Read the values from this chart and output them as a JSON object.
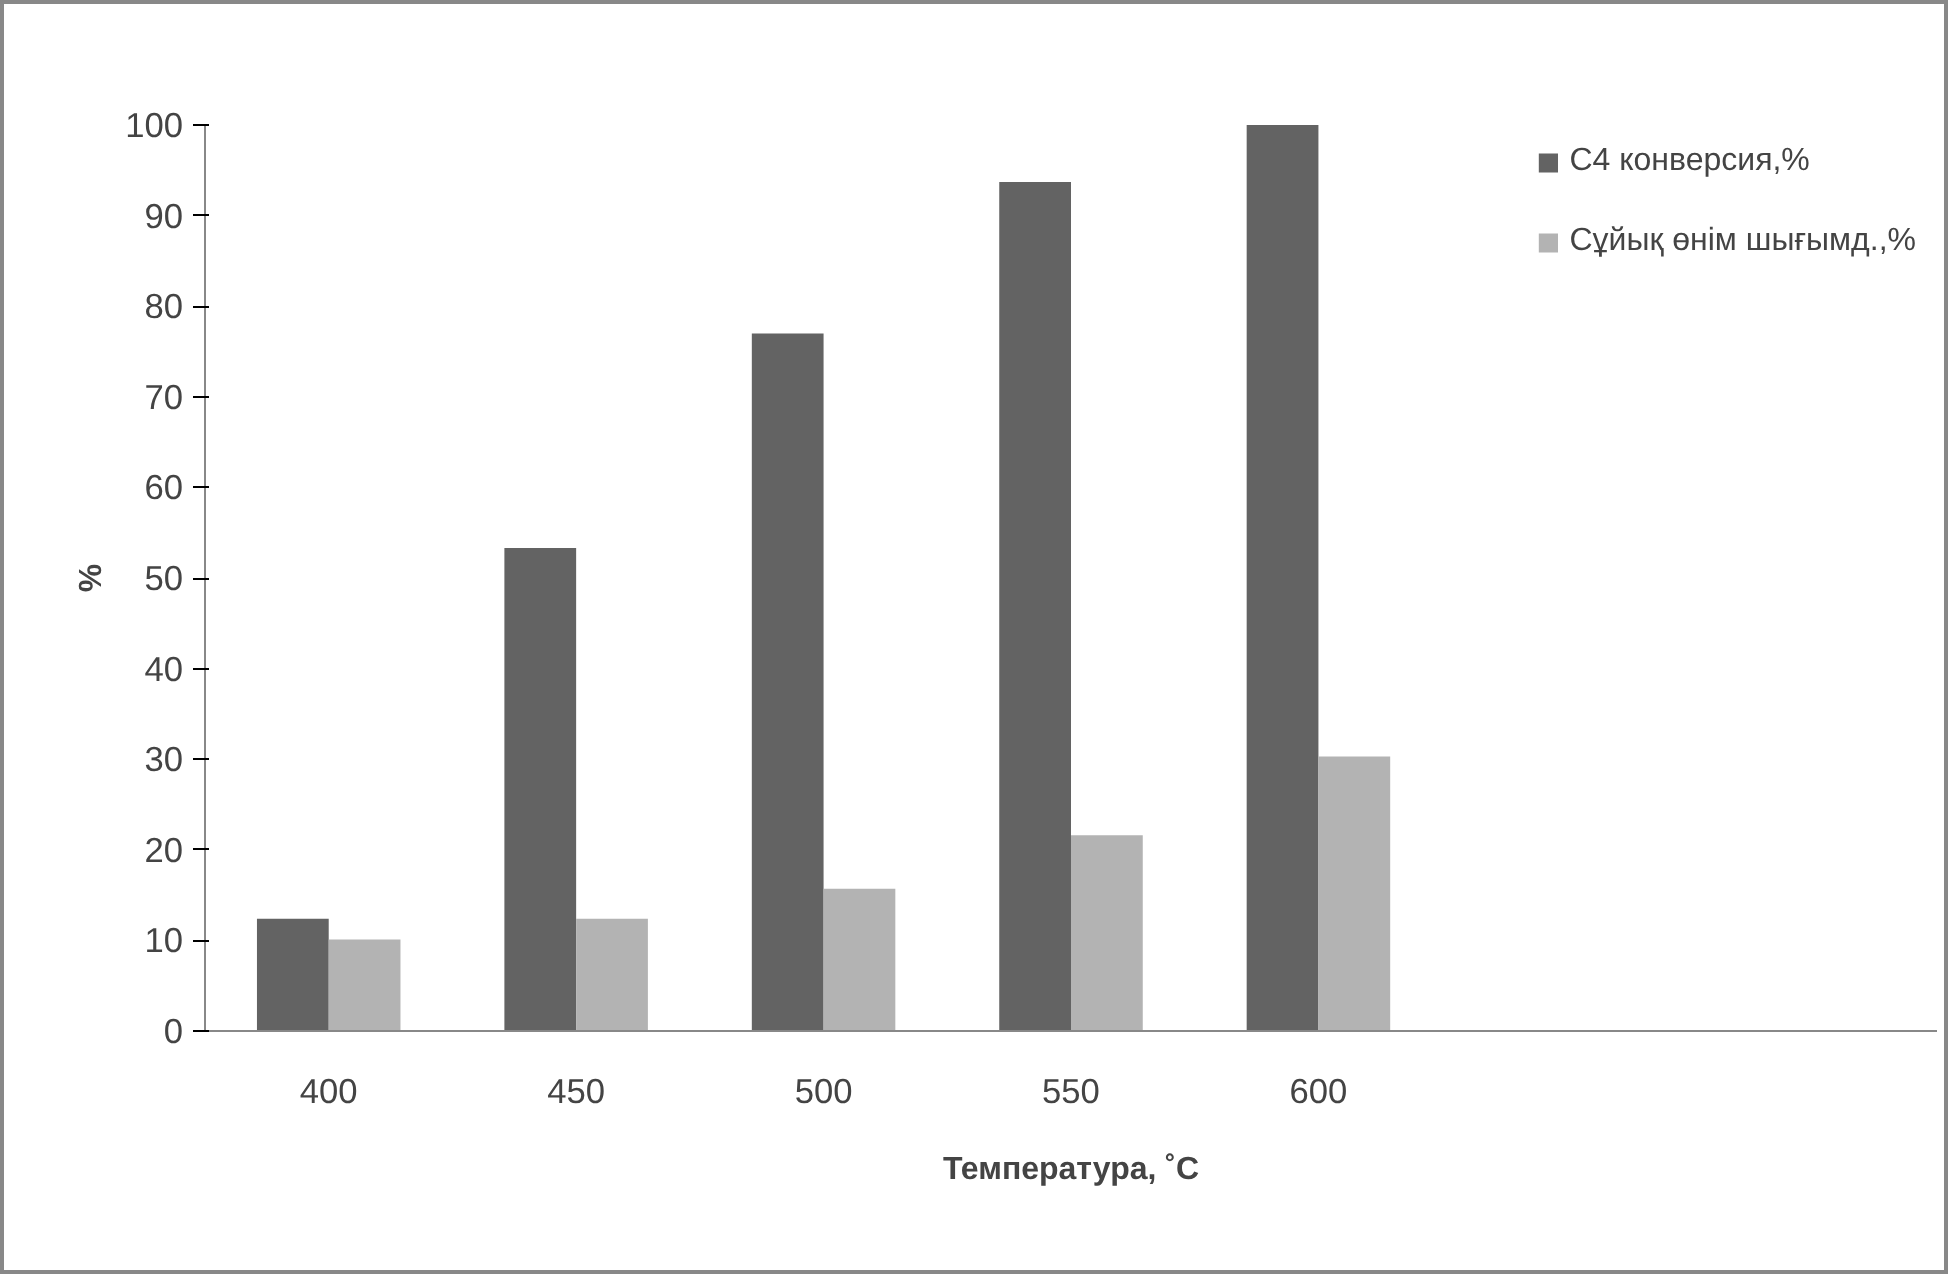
{
  "chart_data": {
    "type": "bar",
    "xlabel": "Температура, ˚С",
    "ylabel": "%",
    "categories": [
      "400",
      "450",
      "500",
      "550",
      "600",
      null,
      null
    ],
    "series": [
      {
        "name": "С4 конверсия,%",
        "color": "#636363",
        "values": [
          12.4,
          53.3,
          77,
          93.7,
          100,
          null,
          null
        ]
      },
      {
        "name": "Сұйық өнім шығымд.,%",
        "color": "#b3b3b3",
        "values": [
          10.1,
          12.4,
          15.7,
          21.6,
          30.3,
          null,
          null
        ]
      }
    ],
    "ylim": [
      0,
      100
    ],
    "yticks": [
      0,
      10,
      20,
      30,
      40,
      50,
      60,
      70,
      80,
      90,
      100
    ],
    "grid": false,
    "legend": "top right"
  }
}
